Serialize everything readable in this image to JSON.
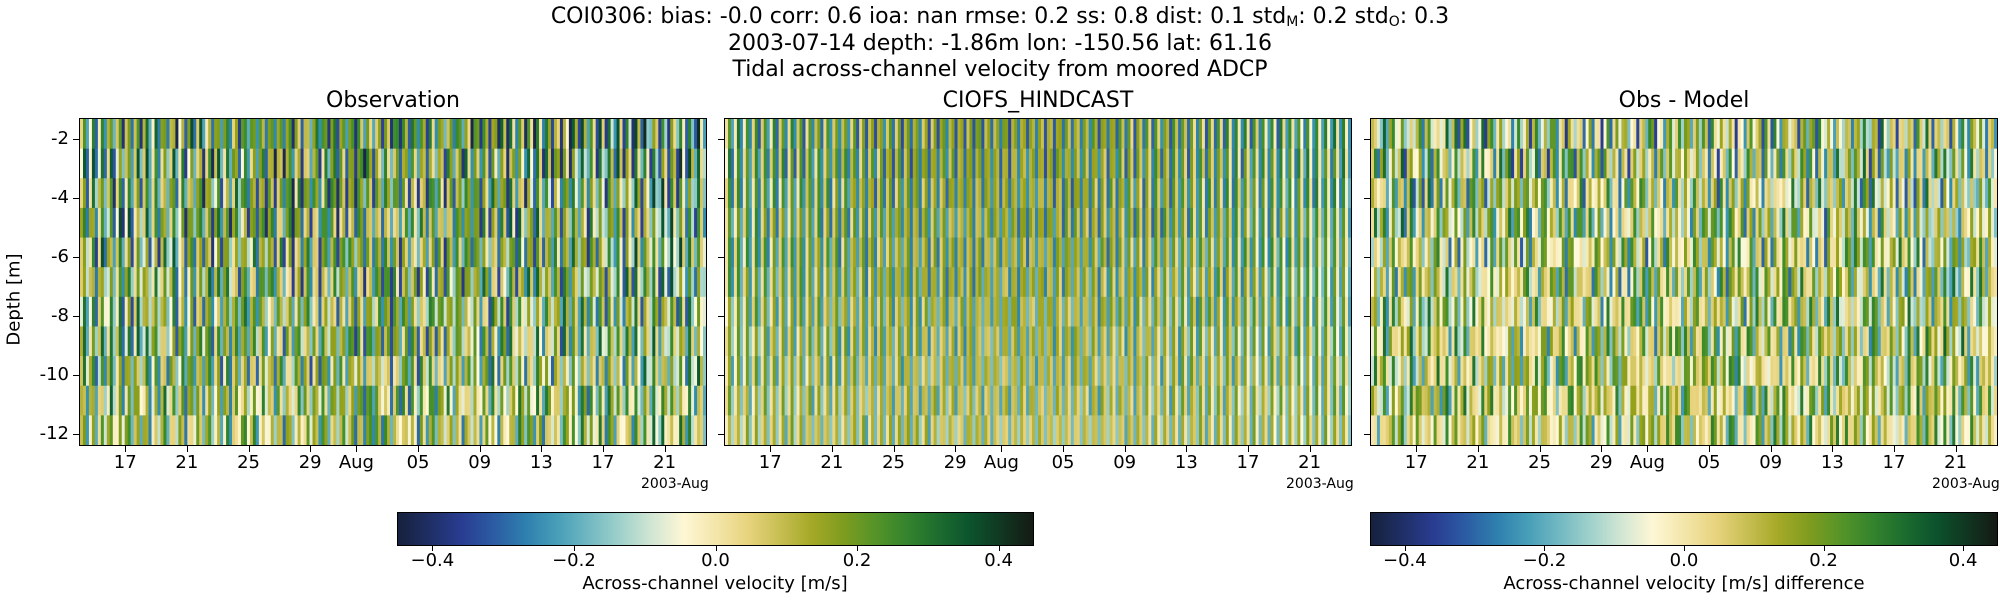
{
  "header": {
    "line1_prefix": "COI0306: bias: -0.0  corr: 0.6  ioa: nan  rmse: 0.2  ss: 0.8  dist: 0.1  std",
    "line1_sub_m": "M",
    "line1_mid": ": 0.2  std",
    "line1_sub_o": "O",
    "line1_suffix": ": 0.3",
    "line2": "2003-07-14 depth: -1.86m lon: -150.56 lat: 61.16",
    "line3": "Tidal across-channel velocity from moored ADCP"
  },
  "colors": {
    "colormap": [
      "#16213c",
      "#2b3f9a",
      "#2f8fb3",
      "#8ecac8",
      "#fff9da",
      "#e7d27a",
      "#9aa21a",
      "#3f8f2c",
      "#0b5a30",
      "#141a14"
    ]
  },
  "chart_data": [
    {
      "type": "heatmap",
      "title": "Observation",
      "ylabel": "Depth [m]",
      "ylim": [
        -12.4,
        -1.3
      ],
      "yticks": [
        "-2",
        "-4",
        "-6",
        "-8",
        "-10",
        "-12"
      ],
      "xticks": [
        "17",
        "21",
        "25",
        "29",
        "Aug",
        "05",
        "09",
        "13",
        "17",
        "21"
      ],
      "x_offset_label": "2003-Aug",
      "xrange": [
        "2003-07-14",
        "2003-08-23"
      ],
      "value_range": [
        -0.45,
        0.45
      ]
    },
    {
      "type": "heatmap",
      "title": "CIOFS_HINDCAST",
      "ylim": [
        -12.4,
        -1.3
      ],
      "xticks": [
        "17",
        "21",
        "25",
        "29",
        "Aug",
        "05",
        "09",
        "13",
        "17",
        "21"
      ],
      "x_offset_label": "2003-Aug",
      "xrange": [
        "2003-07-14",
        "2003-08-23"
      ],
      "value_range": [
        -0.45,
        0.45
      ]
    },
    {
      "type": "heatmap",
      "title": "Obs - Model",
      "ylim": [
        -12.4,
        -1.3
      ],
      "xticks": [
        "17",
        "21",
        "25",
        "29",
        "Aug",
        "05",
        "09",
        "13",
        "17",
        "21"
      ],
      "x_offset_label": "2003-Aug",
      "xrange": [
        "2003-07-14",
        "2003-08-23"
      ],
      "value_range": [
        -0.45,
        0.45
      ]
    }
  ],
  "colorbars": [
    {
      "label": "Across-channel velocity [m/s]",
      "ticks": [
        "−0.4",
        "−0.2",
        "0.0",
        "0.2",
        "0.4"
      ],
      "values": [
        -0.4,
        -0.2,
        0.0,
        0.2,
        0.4
      ],
      "range": [
        -0.45,
        0.45
      ]
    },
    {
      "label": "Across-channel velocity [m/s] difference",
      "ticks": [
        "−0.4",
        "−0.2",
        "0.0",
        "0.2",
        "0.4"
      ],
      "values": [
        -0.4,
        -0.2,
        0.0,
        0.2,
        0.4
      ],
      "range": [
        -0.45,
        0.45
      ]
    }
  ]
}
